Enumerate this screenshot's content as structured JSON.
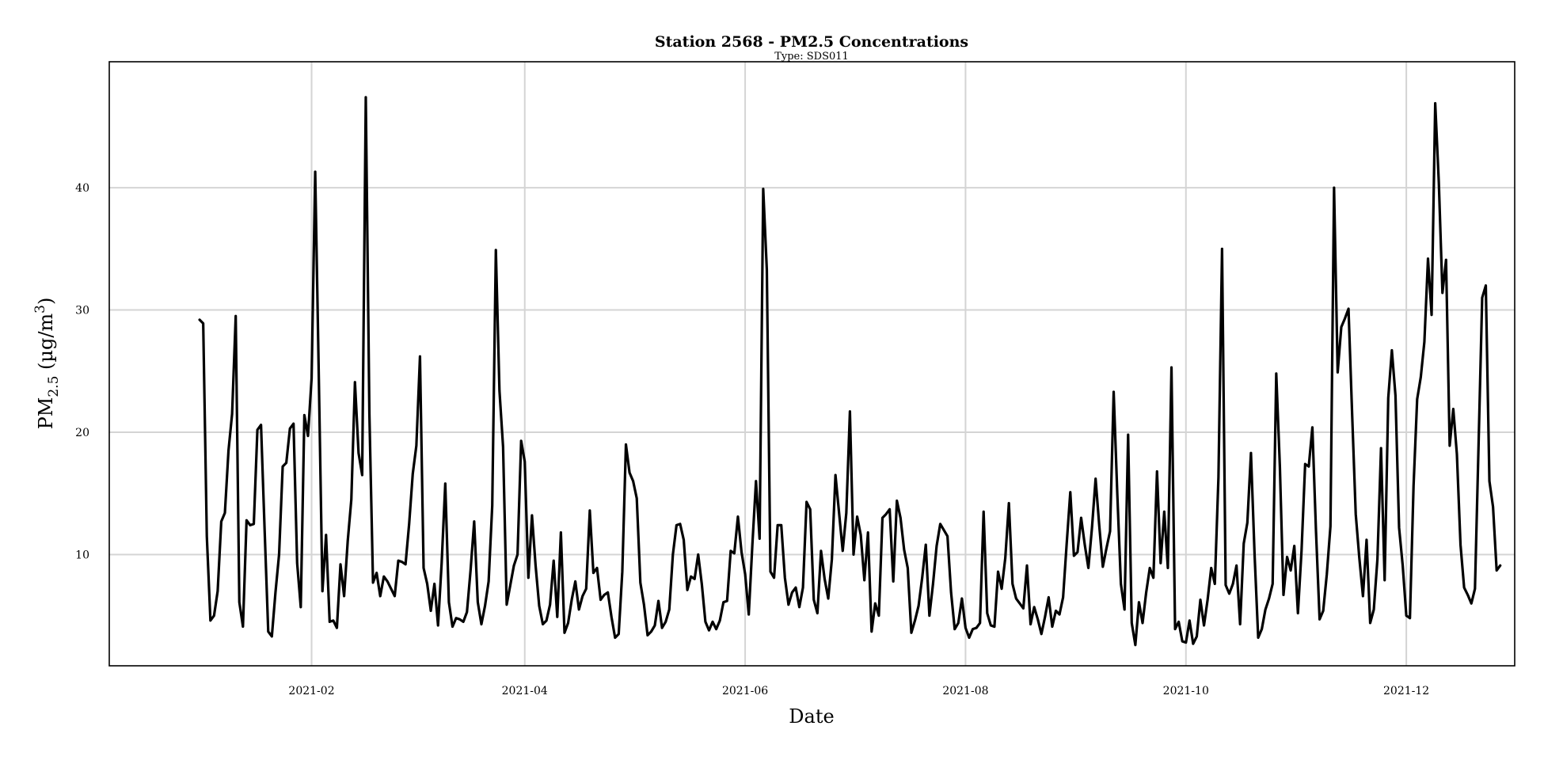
{
  "chart_data": {
    "type": "line",
    "title": "Station 2568 - PM2.5 Concentrations",
    "subtitle": "Type: SDS011",
    "xlabel": "Date",
    "ylabel": {
      "base": "PM",
      "sub": "2.5",
      "unit_open": " (µg/m",
      "sup": "3",
      "unit_close": ")"
    },
    "xlim": [
      "2020-12-07",
      "2021-12-31"
    ],
    "ylim": [
      0.9,
      50.3
    ],
    "x_ticks": [
      {
        "date": "2021-02-01",
        "label": "2021-02"
      },
      {
        "date": "2021-04-01",
        "label": "2021-04"
      },
      {
        "date": "2021-06-01",
        "label": "2021-06"
      },
      {
        "date": "2021-08-01",
        "label": "2021-08"
      },
      {
        "date": "2021-10-01",
        "label": "2021-10"
      },
      {
        "date": "2021-12-01",
        "label": "2021-12"
      }
    ],
    "y_ticks": [
      10,
      20,
      30,
      40
    ],
    "grid": true,
    "line_color": "#000000",
    "grid_color": "#d4d4d4",
    "series": [
      {
        "start_date": "2021-01-01",
        "values": [
          29.2,
          28.9,
          11.5,
          4.6,
          5.0,
          7.0,
          12.7,
          13.4,
          18.5,
          21.5,
          29.5,
          6.1,
          4.1,
          12.8,
          12.4,
          12.5,
          20.2,
          20.6,
          12.0,
          3.7,
          3.3,
          6.9,
          10.0,
          17.2,
          17.5,
          20.3,
          20.7,
          9.3,
          5.7,
          21.4,
          19.7,
          24.4,
          41.3,
          24.5,
          7.0,
          11.6,
          4.5,
          4.6,
          4.0,
          9.2,
          6.6,
          11.1,
          14.5,
          24.1,
          18.3,
          16.5,
          47.4,
          21.5,
          7.7,
          8.5,
          6.6,
          8.2,
          7.8,
          7.2,
          6.6,
          9.5,
          9.4,
          9.2,
          12.5,
          16.6,
          18.9,
          26.2,
          8.9,
          7.6,
          5.4,
          7.6,
          4.2,
          9.3,
          15.8,
          6.1,
          4.1,
          4.8,
          4.7,
          4.5,
          5.3,
          8.7,
          12.7,
          6.1,
          4.3,
          5.8,
          7.8,
          14.0,
          34.9,
          23.4,
          18.8,
          5.9,
          7.5,
          9.1,
          10.0,
          19.3,
          17.6,
          8.1,
          13.2,
          9.1,
          5.8,
          4.3,
          4.6,
          5.9,
          9.5,
          4.9,
          11.8,
          3.6,
          4.4,
          6.3,
          7.8,
          5.5,
          6.6,
          7.2,
          13.6,
          8.5,
          8.9,
          6.3,
          6.7,
          6.9,
          4.9,
          3.2,
          3.5,
          8.6,
          19.0,
          16.7,
          16.0,
          14.6,
          7.7,
          5.9,
          3.4,
          3.7,
          4.2,
          6.2,
          4.0,
          4.5,
          5.5,
          10.0,
          12.4,
          12.5,
          11.2,
          7.1,
          8.2,
          8.0,
          10.0,
          7.6,
          4.5,
          3.8,
          4.5,
          3.9,
          4.6,
          6.1,
          6.2,
          10.3,
          10.1,
          13.1,
          10.2,
          8.4,
          5.1,
          10.8,
          16.0,
          11.3,
          39.9,
          33.3,
          8.6,
          8.1,
          12.4,
          12.4,
          8.1,
          5.9,
          6.9,
          7.3,
          5.7,
          7.3,
          14.3,
          13.7,
          6.3,
          5.2,
          10.3,
          8.0,
          6.4,
          9.6,
          16.5,
          13.4,
          10.3,
          13.4,
          21.7,
          10.0,
          13.1,
          11.6,
          7.9,
          11.8,
          3.7,
          6.0,
          5.0,
          13.0,
          13.3,
          13.7,
          7.8,
          14.4,
          13.0,
          10.4,
          8.9,
          3.6,
          4.6,
          5.8,
          8.1,
          10.8,
          5.0,
          7.6,
          10.7,
          12.5,
          12.0,
          11.5,
          6.9,
          3.9,
          4.4,
          6.4,
          4.0,
          3.2,
          3.9,
          4.0,
          4.4,
          13.5,
          5.2,
          4.2,
          4.1,
          8.6,
          7.2,
          9.7,
          14.2,
          7.6,
          6.4,
          6.0,
          5.6,
          9.1,
          4.3,
          5.7,
          4.7,
          3.5,
          4.9,
          6.5,
          4.1,
          5.4,
          5.1,
          6.5,
          10.9,
          15.1,
          9.9,
          10.2,
          13.0,
          10.8,
          8.9,
          12.2,
          16.2,
          12.4,
          9.0,
          10.5,
          11.9,
          23.3,
          15.0,
          7.6,
          5.5,
          19.8,
          4.4,
          2.6,
          6.1,
          4.4,
          6.9,
          8.9,
          8.1,
          16.8,
          9.3,
          13.5,
          8.9,
          25.3,
          3.9,
          4.5,
          2.9,
          2.8,
          4.6,
          2.7,
          3.3,
          6.3,
          4.2,
          6.3,
          8.9,
          7.6,
          16.3,
          35.0,
          7.5,
          6.8,
          7.6,
          9.1,
          4.3,
          10.9,
          12.6,
          18.3,
          10.0,
          3.2,
          3.9,
          5.5,
          6.4,
          7.6,
          24.8,
          17.2,
          6.7,
          9.8,
          8.7,
          10.7,
          5.2,
          10.3,
          17.4,
          17.2,
          20.4,
          11.9,
          4.7,
          5.4,
          8.4,
          12.3,
          40.0,
          24.9,
          28.6,
          29.3,
          30.1,
          21.5,
          13.3,
          9.7,
          6.6,
          11.2,
          4.4,
          5.5,
          9.6,
          18.7,
          7.9,
          22.8,
          26.7,
          23.0,
          12.2,
          9.1,
          5.0,
          4.8,
          15.6,
          22.7,
          24.5,
          27.4,
          34.2,
          29.6,
          46.9,
          40.4,
          31.4,
          34.1,
          18.9,
          21.9,
          18.2,
          10.8,
          7.3,
          6.7,
          6.0,
          7.2,
          19.0,
          31.0,
          32.0,
          16.0,
          13.9,
          8.7,
          9.1
        ]
      }
    ]
  }
}
